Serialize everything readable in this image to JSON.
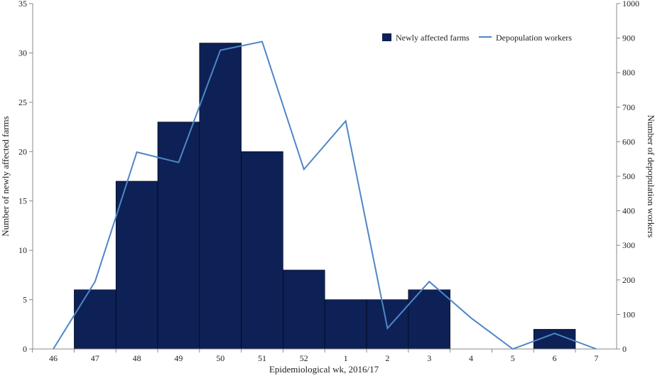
{
  "chart_data": {
    "type": "bar",
    "xlabel": "Epidemiological wk, 2016/17",
    "ylabel_left": "Number of newly affected farms",
    "ylabel_right": "Number of depopulation workers",
    "categories": [
      "46",
      "47",
      "48",
      "49",
      "50",
      "51",
      "52",
      "1",
      "2",
      "3",
      "4",
      "5",
      "6",
      "7"
    ],
    "ylim_left": [
      0,
      35
    ],
    "yticks_left": [
      0,
      5,
      10,
      15,
      20,
      25,
      30,
      35
    ],
    "ylim_right": [
      0,
      1000
    ],
    "yticks_right": [
      0,
      100,
      200,
      300,
      400,
      500,
      600,
      700,
      800,
      900,
      1000
    ],
    "grid": false,
    "legend_position": "top-right",
    "series": [
      {
        "name": "Newly affected farms",
        "type": "bar",
        "axis": "left",
        "color": "#0d2157",
        "values": [
          0,
          6,
          17,
          23,
          31,
          20,
          8,
          5,
          5,
          6,
          0,
          0,
          2,
          0
        ]
      },
      {
        "name": "Depopulation workers",
        "type": "line",
        "axis": "right",
        "color": "#4f86c6",
        "values": [
          0,
          195,
          570,
          540,
          865,
          890,
          520,
          660,
          60,
          195,
          90,
          0,
          45,
          0
        ]
      }
    ]
  }
}
